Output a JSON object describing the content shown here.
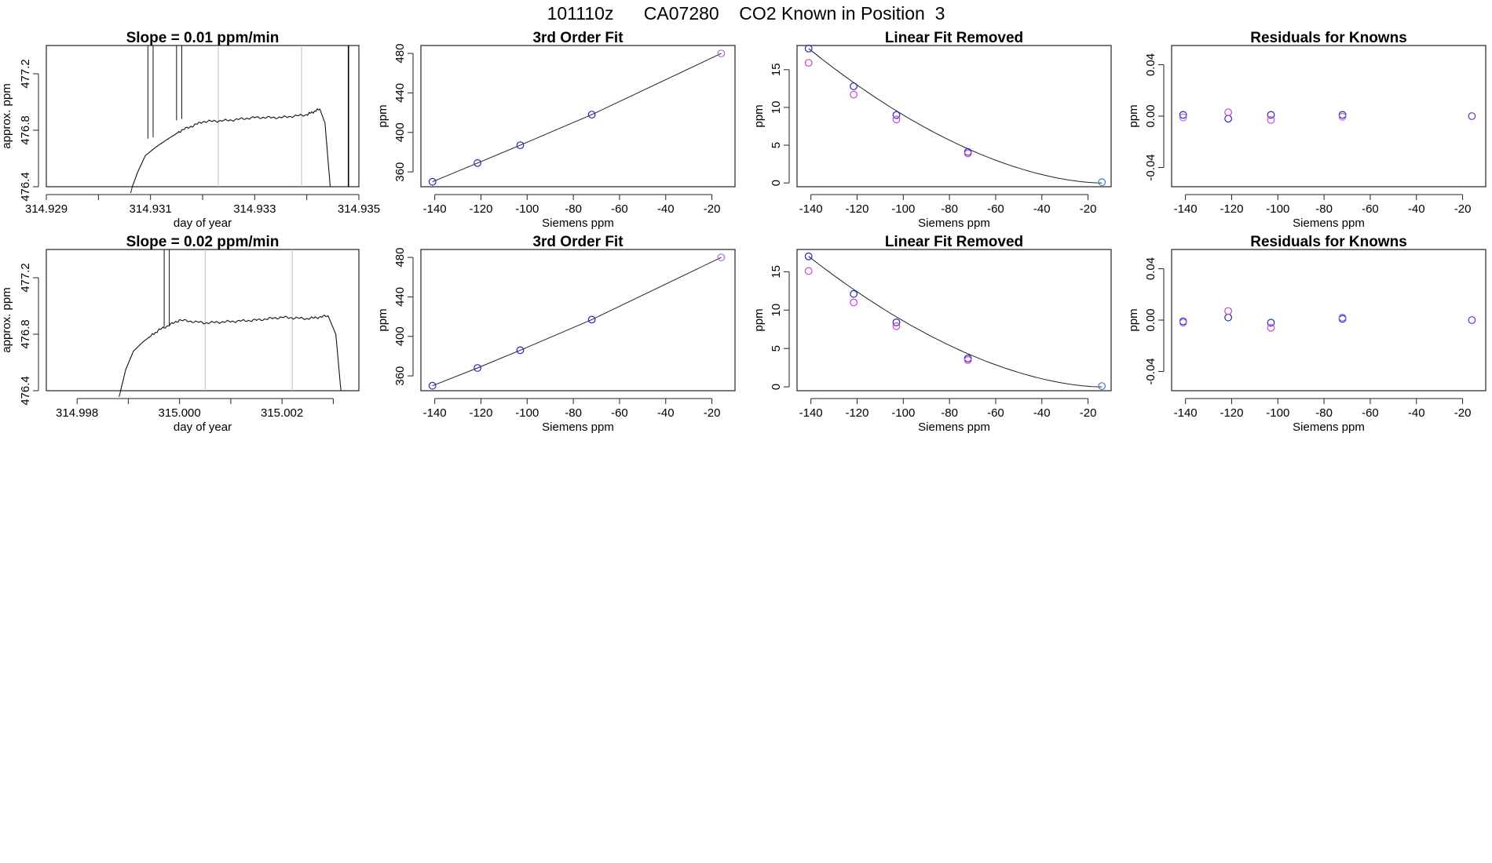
{
  "header": {
    "title": "101110z      CA07280    CO2 Known in Position  3"
  },
  "chart_data": [
    {
      "id": "r1-ts",
      "type": "line",
      "title": "Slope =  0.01  ppm/min",
      "xlabel": "day of year",
      "ylabel": "approx. ppm",
      "xlim": [
        314.929,
        314.935
      ],
      "ylim": [
        476.4,
        477.4
      ],
      "xticks": [
        314.929,
        314.931,
        314.933,
        314.935
      ],
      "xtick_labels": [
        "314.929",
        "314.931",
        "314.933",
        "314.935"
      ],
      "xminor": [
        314.93,
        314.932,
        314.934
      ],
      "yticks": [
        476.4,
        476.8,
        477.2
      ],
      "ytick_labels": [
        "476.4",
        "476.8",
        "477.2"
      ],
      "vlines_gray": [
        314.9323,
        314.9339
      ],
      "vlines_black": [
        314.9348
      ],
      "spikes": [
        [
          314.93095,
          314.93105,
          476.74
        ],
        [
          314.9315,
          314.9316,
          476.87
        ]
      ],
      "series": [
        {
          "name": "trace",
          "x": [
            314.93065,
            314.93075,
            314.9309,
            314.9311,
            314.9313,
            314.9316,
            314.932,
            314.9325,
            314.933,
            314.9335,
            314.934,
            314.93425,
            314.93435,
            314.93445
          ],
          "y": [
            476.4,
            476.5,
            476.62,
            476.68,
            476.73,
            476.8,
            476.86,
            476.87,
            476.89,
            476.89,
            476.91,
            476.95,
            476.85,
            476.4
          ]
        }
      ]
    },
    {
      "id": "r1-fit",
      "type": "scatter",
      "title": "3rd Order Fit",
      "xlabel": "Siemens ppm",
      "ylabel": "ppm",
      "xlim": [
        -146,
        -10
      ],
      "ylim": [
        345,
        488
      ],
      "xticks": [
        -140,
        -120,
        -100,
        -80,
        -60,
        -40,
        -20
      ],
      "xtick_labels": [
        "-140",
        "-120",
        "-100",
        "-80",
        "-60",
        "-40",
        "-20"
      ],
      "yticks": [
        360,
        400,
        440,
        480
      ],
      "ytick_labels": [
        "360",
        "400",
        "440",
        "480"
      ],
      "points": [
        {
          "x": -141,
          "y": 350,
          "color": "#2323cc"
        },
        {
          "x": -121.5,
          "y": 369,
          "color": "#2323cc"
        },
        {
          "x": -103,
          "y": 387,
          "color": "#2323cc"
        },
        {
          "x": -72,
          "y": 418,
          "color": "#2323cc"
        },
        {
          "x": -16,
          "y": 480,
          "color": "#b06ad8"
        }
      ],
      "curve": {
        "x": [
          -141,
          -121.5,
          -103,
          -72,
          -16
        ],
        "y": [
          350,
          369,
          387,
          418,
          480
        ]
      }
    },
    {
      "id": "r1-lin",
      "type": "scatter",
      "title": "Linear Fit Removed",
      "xlabel": "Siemens ppm",
      "ylabel": "ppm",
      "xlim": [
        -146,
        -10
      ],
      "ylim": [
        -0.5,
        18.2
      ],
      "xticks": [
        -140,
        -120,
        -100,
        -80,
        -60,
        -40,
        -20
      ],
      "xtick_labels": [
        "-140",
        "-120",
        "-100",
        "-80",
        "-60",
        "-40",
        "-20"
      ],
      "yticks": [
        0,
        5,
        10,
        15
      ],
      "ytick_labels": [
        "0",
        "5",
        "10",
        "15"
      ],
      "points": [
        {
          "x": -141,
          "y": 17.8,
          "color": "#2323cc"
        },
        {
          "x": -141,
          "y": 15.9,
          "color": "#cc44cc"
        },
        {
          "x": -121.5,
          "y": 12.8,
          "color": "#2323cc"
        },
        {
          "x": -121.5,
          "y": 11.7,
          "color": "#cc44cc"
        },
        {
          "x": -103,
          "y": 9.0,
          "color": "#2323cc"
        },
        {
          "x": -103,
          "y": 8.4,
          "color": "#cc44cc"
        },
        {
          "x": -72,
          "y": 4.1,
          "color": "#2323cc"
        },
        {
          "x": -72,
          "y": 3.9,
          "color": "#cc44cc"
        },
        {
          "x": -14,
          "y": 0.1,
          "color": "#4477cc"
        }
      ],
      "curve": {
        "a": 17.8,
        "x0": -141,
        "x1": -14
      }
    },
    {
      "id": "r1-res",
      "type": "scatter",
      "title": "Residuals for Knowns",
      "xlabel": "Siemens ppm",
      "ylabel": "ppm",
      "xlim": [
        -146,
        -10
      ],
      "ylim": [
        -0.055,
        0.055
      ],
      "xticks": [
        -140,
        -120,
        -100,
        -80,
        -60,
        -40,
        -20
      ],
      "xtick_labels": [
        "-140",
        "-120",
        "-100",
        "-80",
        "-60",
        "-40",
        "-20"
      ],
      "yticks": [
        -0.04,
        0.0,
        0.04
      ],
      "ytick_labels": [
        "-0.04",
        "0.00",
        "0.04"
      ],
      "points": [
        {
          "x": -141,
          "y": 0.001,
          "color": "#2323cc"
        },
        {
          "x": -141,
          "y": -0.001,
          "color": "#b06ad8"
        },
        {
          "x": -121.5,
          "y": -0.002,
          "color": "#2323cc"
        },
        {
          "x": -121.5,
          "y": 0.003,
          "color": "#cc44cc"
        },
        {
          "x": -103,
          "y": 0.001,
          "color": "#2323cc"
        },
        {
          "x": -103,
          "y": -0.003,
          "color": "#cc44cc"
        },
        {
          "x": -72,
          "y": 0.001,
          "color": "#2323cc"
        },
        {
          "x": -72,
          "y": -0.0005,
          "color": "#b06ad8"
        },
        {
          "x": -16,
          "y": 0.0,
          "color": "#6a2ad8"
        }
      ]
    },
    {
      "id": "r2-ts",
      "type": "line",
      "title": "Slope =  0.02  ppm/min",
      "xlabel": "day of year",
      "ylabel": "approx. ppm",
      "xlim": [
        314.9974,
        315.0035
      ],
      "ylim": [
        476.4,
        477.4
      ],
      "xticks": [
        314.998,
        315.0,
        315.002
      ],
      "xtick_labels": [
        "314.998",
        "315.000",
        "315.002"
      ],
      "xminor": [
        314.999,
        315.001,
        315.003
      ],
      "yticks": [
        476.4,
        476.8,
        477.2
      ],
      "ytick_labels": [
        "476.4",
        "476.8",
        "477.2"
      ],
      "vlines_gray": [
        315.0005,
        315.0022
      ],
      "vlines_black": [],
      "spikes": [
        [
          314.9997,
          314.9998,
          476.85
        ]
      ],
      "series": [
        {
          "name": "trace",
          "x": [
            314.99885,
            314.99895,
            314.9991,
            314.9993,
            314.9996,
            315.0,
            315.0005,
            315.001,
            315.0015,
            315.002,
            315.0025,
            315.0029,
            315.00305,
            315.00315
          ],
          "y": [
            476.4,
            476.55,
            476.68,
            476.75,
            476.83,
            476.9,
            476.88,
            476.89,
            476.9,
            476.92,
            476.91,
            476.93,
            476.8,
            476.4
          ]
        }
      ]
    },
    {
      "id": "r2-fit",
      "type": "scatter",
      "title": "3rd Order Fit",
      "xlabel": "Siemens ppm",
      "ylabel": "ppm",
      "xlim": [
        -146,
        -10
      ],
      "ylim": [
        345,
        488
      ],
      "xticks": [
        -140,
        -120,
        -100,
        -80,
        -60,
        -40,
        -20
      ],
      "xtick_labels": [
        "-140",
        "-120",
        "-100",
        "-80",
        "-60",
        "-40",
        "-20"
      ],
      "yticks": [
        360,
        400,
        440,
        480
      ],
      "ytick_labels": [
        "360",
        "400",
        "440",
        "480"
      ],
      "points": [
        {
          "x": -141,
          "y": 350,
          "color": "#2323cc"
        },
        {
          "x": -121.5,
          "y": 368,
          "color": "#2323cc"
        },
        {
          "x": -103,
          "y": 386,
          "color": "#2323cc"
        },
        {
          "x": -72,
          "y": 417,
          "color": "#2323cc"
        },
        {
          "x": -16,
          "y": 480,
          "color": "#b06ad8"
        }
      ],
      "curve": {
        "x": [
          -141,
          -121.5,
          -103,
          -72,
          -16
        ],
        "y": [
          350,
          368,
          386,
          417,
          480
        ]
      }
    },
    {
      "id": "r2-lin",
      "type": "scatter",
      "title": "Linear Fit Removed",
      "xlabel": "Siemens ppm",
      "ylabel": "ppm",
      "xlim": [
        -146,
        -10
      ],
      "ylim": [
        -0.5,
        17.9
      ],
      "xticks": [
        -140,
        -120,
        -100,
        -80,
        -60,
        -40,
        -20
      ],
      "xtick_labels": [
        "-140",
        "-120",
        "-100",
        "-80",
        "-60",
        "-40",
        "-20"
      ],
      "yticks": [
        0,
        5,
        10,
        15
      ],
      "ytick_labels": [
        "0",
        "5",
        "10",
        "15"
      ],
      "points": [
        {
          "x": -141,
          "y": 17.0,
          "color": "#2323cc"
        },
        {
          "x": -141,
          "y": 15.1,
          "color": "#cc44cc"
        },
        {
          "x": -121.5,
          "y": 12.1,
          "color": "#2323cc"
        },
        {
          "x": -121.5,
          "y": 11.0,
          "color": "#cc44cc"
        },
        {
          "x": -103,
          "y": 8.4,
          "color": "#2323cc"
        },
        {
          "x": -103,
          "y": 7.9,
          "color": "#cc44cc"
        },
        {
          "x": -72,
          "y": 3.7,
          "color": "#2323cc"
        },
        {
          "x": -72,
          "y": 3.5,
          "color": "#cc44cc"
        },
        {
          "x": -14,
          "y": 0.1,
          "color": "#4477cc"
        }
      ],
      "curve": {
        "a": 17.0,
        "x0": -141,
        "x1": -14
      }
    },
    {
      "id": "r2-res",
      "type": "scatter",
      "title": "Residuals for Knowns",
      "xlabel": "Siemens ppm",
      "ylabel": "ppm",
      "xlim": [
        -146,
        -10
      ],
      "ylim": [
        -0.055,
        0.055
      ],
      "xticks": [
        -140,
        -120,
        -100,
        -80,
        -60,
        -40,
        -20
      ],
      "xtick_labels": [
        "-140",
        "-120",
        "-100",
        "-80",
        "-60",
        "-40",
        "-20"
      ],
      "yticks": [
        -0.04,
        0.0,
        0.04
      ],
      "ytick_labels": [
        "-0.04",
        "0.00",
        "0.04"
      ],
      "points": [
        {
          "x": -141,
          "y": -0.001,
          "color": "#2323cc"
        },
        {
          "x": -141,
          "y": -0.002,
          "color": "#b06ad8"
        },
        {
          "x": -121.5,
          "y": 0.002,
          "color": "#2323cc"
        },
        {
          "x": -121.5,
          "y": 0.007,
          "color": "#cc44cc"
        },
        {
          "x": -103,
          "y": -0.002,
          "color": "#2323cc"
        },
        {
          "x": -103,
          "y": -0.006,
          "color": "#cc44cc"
        },
        {
          "x": -72,
          "y": 0.001,
          "color": "#2323cc"
        },
        {
          "x": -72,
          "y": 0.002,
          "color": "#b06ad8"
        },
        {
          "x": -16,
          "y": 0.0,
          "color": "#6a2ad8"
        }
      ]
    }
  ]
}
